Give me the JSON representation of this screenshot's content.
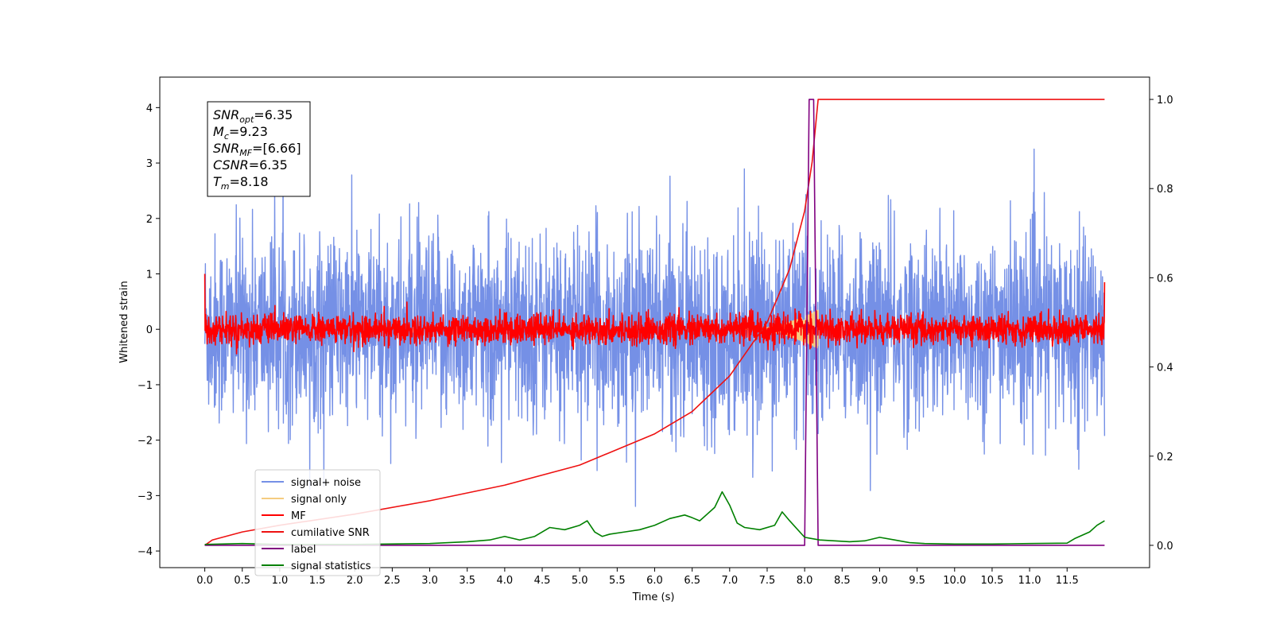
{
  "chart_data": {
    "type": "line",
    "title": "",
    "xlabel": "Time (s)",
    "ylabel": "Whitened strain",
    "y2label": "",
    "xlim": [
      -0.6,
      12.6
    ],
    "ylim": [
      -4.3,
      4.55
    ],
    "y2lim": [
      -0.05,
      1.05
    ],
    "x_ticks": [
      "0.0",
      "0.5",
      "1.0",
      "1.5",
      "2.0",
      "2.5",
      "3.0",
      "3.5",
      "4.0",
      "4.5",
      "5.0",
      "5.5",
      "6.0",
      "6.5",
      "7.0",
      "7.5",
      "8.0",
      "8.5",
      "9.0",
      "9.5",
      "10.0",
      "10.5",
      "11.0",
      "11.5"
    ],
    "y_ticks": [
      "−4",
      "−3",
      "−2",
      "−1",
      "0",
      "1",
      "2",
      "3",
      "4"
    ],
    "y2_ticks": [
      "0.0",
      "0.2",
      "0.4",
      "0.6",
      "0.8",
      "1.0"
    ],
    "grid": false,
    "legend_position": "lower-left",
    "annotation": {
      "lines": [
        {
          "label": "SNR",
          "sub": "opt",
          "value": "=6.35"
        },
        {
          "label": "M",
          "sub": "c",
          "value": "=9.23"
        },
        {
          "label": "SNR",
          "sub": "MF",
          "value": "=[6.66]"
        },
        {
          "label": "CSNR",
          "sub": "",
          "value": "=6.35"
        },
        {
          "label": "T",
          "sub": "m",
          "value": "=8.18"
        }
      ]
    },
    "series": [
      {
        "name": "signal+ noise",
        "color": "#7590e6",
        "axis": "left",
        "kind": "noise",
        "x_range": [
          0.0,
          12.0
        ],
        "std": 0.85
      },
      {
        "name": "signal only",
        "color": "#f5cc80",
        "axis": "left",
        "kind": "chirp",
        "x_range": [
          7.2,
          8.18
        ],
        "peak_amplitude": 0.35
      },
      {
        "name": "MF",
        "color": "#ff0000",
        "axis": "left",
        "kind": "noise",
        "x_range": [
          0.0,
          12.0
        ],
        "std": 0.13,
        "start_value": 1.0,
        "end_value": 0.85
      },
      {
        "name": "cumilative SNR",
        "color": "#ee1111",
        "axis": "right",
        "x": [
          0.0,
          0.1,
          0.5,
          1.0,
          2.0,
          3.0,
          4.0,
          5.0,
          6.0,
          6.5,
          7.0,
          7.5,
          7.8,
          8.0,
          8.1,
          8.18,
          12.0
        ],
        "values": [
          0.0,
          0.012,
          0.03,
          0.045,
          0.07,
          0.1,
          0.135,
          0.18,
          0.25,
          0.3,
          0.38,
          0.5,
          0.62,
          0.75,
          0.86,
          1.0,
          1.0
        ]
      },
      {
        "name": "label",
        "color": "#800080",
        "axis": "right",
        "x": [
          0.0,
          8.0,
          8.06,
          8.12,
          8.18,
          12.0
        ],
        "values": [
          0.0,
          0.0,
          1.0,
          1.0,
          0.0,
          0.0
        ]
      },
      {
        "name": "signal statistics",
        "color": "#008000",
        "axis": "right",
        "x": [
          0.0,
          0.5,
          1.0,
          2.0,
          3.0,
          3.5,
          3.8,
          4.0,
          4.2,
          4.4,
          4.6,
          4.8,
          5.0,
          5.1,
          5.2,
          5.3,
          5.4,
          5.6,
          5.8,
          6.0,
          6.2,
          6.4,
          6.5,
          6.6,
          6.8,
          6.9,
          7.0,
          7.1,
          7.2,
          7.4,
          7.6,
          7.7,
          7.8,
          8.0,
          8.2,
          8.4,
          8.6,
          8.8,
          9.0,
          9.2,
          9.4,
          9.6,
          10.0,
          10.5,
          11.0,
          11.5,
          11.6,
          11.8,
          11.9,
          12.0
        ],
        "values": [
          0.002,
          0.004,
          0.002,
          0.002,
          0.004,
          0.008,
          0.012,
          0.02,
          0.012,
          0.02,
          0.04,
          0.035,
          0.045,
          0.055,
          0.03,
          0.02,
          0.025,
          0.03,
          0.035,
          0.045,
          0.06,
          0.068,
          0.062,
          0.055,
          0.085,
          0.12,
          0.09,
          0.05,
          0.04,
          0.035,
          0.045,
          0.075,
          0.055,
          0.018,
          0.012,
          0.01,
          0.008,
          0.01,
          0.018,
          0.012,
          0.006,
          0.004,
          0.003,
          0.003,
          0.004,
          0.005,
          0.015,
          0.03,
          0.045,
          0.055
        ]
      }
    ]
  }
}
